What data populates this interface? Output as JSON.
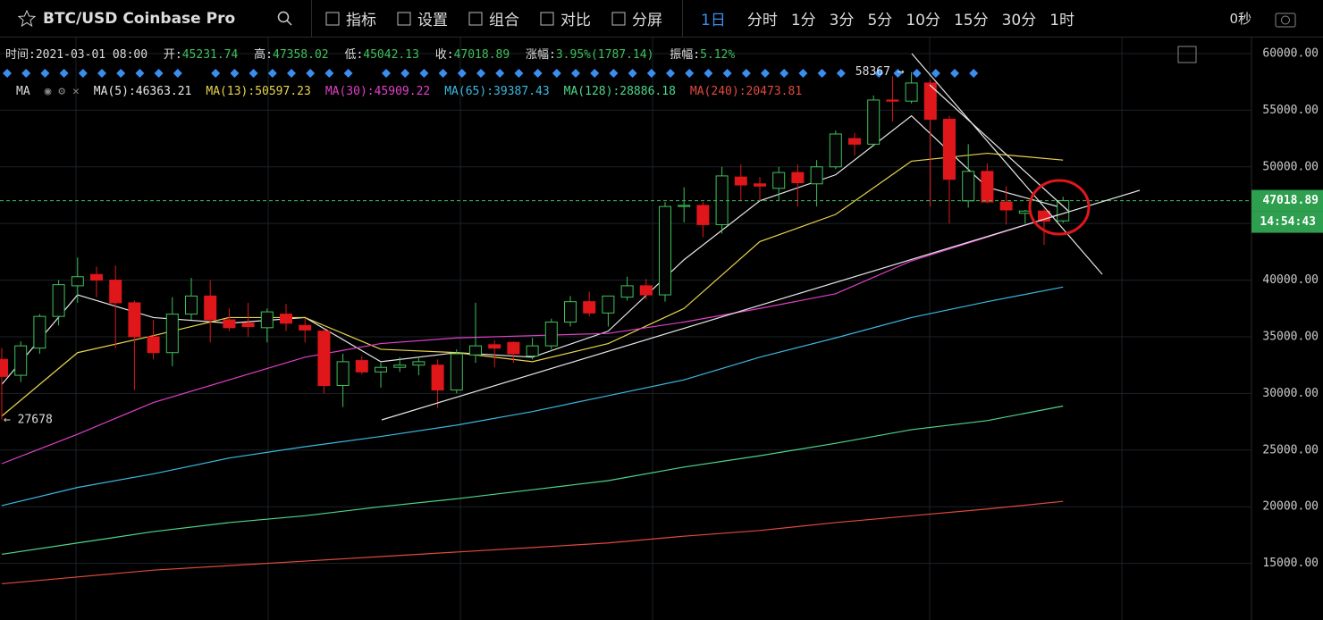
{
  "toolbar": {
    "symbol": "BTC/USD Coinbase Pro",
    "menu": [
      "指标",
      "设置",
      "组合",
      "对比",
      "分屏"
    ],
    "intervals": [
      "1日",
      "分时",
      "1分",
      "3分",
      "5分",
      "10分",
      "15分",
      "30分",
      "1时"
    ],
    "timer": "0秒"
  },
  "info": {
    "time_label": "时间:",
    "time": "2021-03-01 08:00",
    "open_label": "开:",
    "high_label": "高:",
    "low_label": "低:",
    "close_label": "收:",
    "change_label": "涨幅:",
    "change": "3.95%(1787.14)",
    "amplitude_label": "振幅:",
    "amplitude": "5.12%"
  },
  "countdown": "14:54:43",
  "chart_data": {
    "type": "candlestick",
    "indicator": "MA",
    "separator": ":",
    "open": [
      33000,
      31600,
      34000,
      36800,
      39500,
      40500,
      40000,
      38000,
      35000,
      33600,
      37000,
      38600,
      36500,
      36200,
      35800,
      37000,
      36000,
      35500,
      30700,
      32900,
      31900,
      32300,
      32500,
      32500,
      30300,
      33400,
      34300,
      34500,
      33300,
      34200,
      36300,
      38100,
      37100,
      38500,
      39500,
      38700,
      46500,
      46600,
      44900,
      49100,
      48500,
      48100,
      49500,
      48500,
      50000,
      52500,
      52000,
      55900,
      55800,
      57400,
      54200,
      47000,
      49600,
      46900,
      45900,
      46100,
      45231.74
    ],
    "high": [
      34000,
      34600,
      37000,
      40000,
      42000,
      41200,
      41300,
      38200,
      36500,
      38500,
      40200,
      40000,
      37500,
      38000,
      37500,
      37900,
      36600,
      35700,
      33500,
      33300,
      32700,
      33200,
      33100,
      33000,
      33900,
      38000,
      34700,
      34600,
      34900,
      36600,
      38600,
      39000,
      38600,
      40300,
      40100,
      46900,
      48200,
      46900,
      50000,
      50200,
      49100,
      50000,
      50200,
      50600,
      53200,
      53000,
      56300,
      58000,
      58367,
      57700,
      54500,
      52000,
      50300,
      48300,
      46200,
      46300,
      47358.02
    ],
    "low": [
      27678,
      31000,
      33500,
      36000,
      38000,
      38500,
      34000,
      30300,
      33000,
      32400,
      36500,
      34500,
      35500,
      35000,
      34500,
      35500,
      34500,
      30000,
      28800,
      31700,
      30500,
      31900,
      31600,
      28700,
      30000,
      32700,
      32300,
      32700,
      33000,
      33900,
      35900,
      36800,
      35900,
      38200,
      38300,
      38100,
      45100,
      43800,
      44100,
      47000,
      47000,
      47000,
      46500,
      46500,
      49800,
      51000,
      51800,
      54000,
      55600,
      46500,
      45000,
      46400,
      46800,
      44900,
      45000,
      43100,
      45042.13
    ],
    "close": [
      31500,
      34200,
      36800,
      39600,
      40300,
      40000,
      38000,
      35000,
      33600,
      37000,
      38600,
      36500,
      35800,
      35900,
      37200,
      36200,
      35600,
      30700,
      32800,
      31900,
      32300,
      32500,
      32800,
      30300,
      33500,
      34200,
      34000,
      33500,
      34200,
      36300,
      38100,
      37100,
      38600,
      39500,
      38700,
      46500,
      46600,
      44900,
      49200,
      48400,
      48300,
      49500,
      48600,
      50000,
      52900,
      52000,
      55900,
      55800,
      57400,
      54200,
      48900,
      49600,
      46900,
      46200,
      46100,
      45200,
      47018.89
    ],
    "up_color": "#3fc05a",
    "down_color": "#e0171a",
    "series": [
      {
        "name": "MA(5)",
        "color": "#e8e8e8",
        "x": [
          0,
          4,
          8,
          12,
          16,
          20,
          24,
          28,
          32,
          36,
          40,
          44,
          48,
          52,
          56
        ],
        "values": [
          30800,
          38700,
          36700,
          36200,
          36700,
          32800,
          33600,
          33200,
          35500,
          41800,
          47000,
          49300,
          54500,
          48200,
          46363.21
        ]
      },
      {
        "name": "MA(13)",
        "color": "#e8d44d",
        "x": [
          0,
          4,
          8,
          12,
          16,
          20,
          24,
          28,
          32,
          36,
          40,
          44,
          48,
          52,
          56
        ],
        "values": [
          28000,
          33600,
          35100,
          36700,
          36700,
          33900,
          33600,
          32800,
          34400,
          37500,
          43400,
          45800,
          50500,
          51200,
          50597.23
        ]
      },
      {
        "name": "MA(30)",
        "color": "#e040c8",
        "x": [
          0,
          4,
          8,
          12,
          16,
          20,
          24,
          28,
          32,
          36,
          40,
          44,
          48,
          52,
          56
        ],
        "values": [
          23800,
          26400,
          29200,
          31200,
          33200,
          34400,
          34900,
          35100,
          35300,
          36300,
          37500,
          38800,
          41700,
          43800,
          45909.22
        ]
      },
      {
        "name": "MA(65)",
        "color": "#3cb8e0",
        "x": [
          0,
          4,
          8,
          12,
          16,
          20,
          24,
          28,
          32,
          36,
          40,
          44,
          48,
          52,
          56
        ],
        "values": [
          20100,
          21700,
          22900,
          24300,
          25300,
          26200,
          27200,
          28400,
          29800,
          31200,
          33200,
          34900,
          36700,
          38100,
          39387.43
        ]
      },
      {
        "name": "MA(128)",
        "color": "#4fd68a",
        "x": [
          0,
          4,
          8,
          12,
          16,
          20,
          24,
          28,
          32,
          36,
          40,
          44,
          48,
          52,
          56
        ],
        "values": [
          15800,
          16800,
          17800,
          18600,
          19200,
          20000,
          20700,
          21500,
          22300,
          23500,
          24500,
          25600,
          26800,
          27600,
          28886.18
        ]
      },
      {
        "name": "MA(240)",
        "color": "#e04a3c",
        "x": [
          0,
          4,
          8,
          12,
          16,
          20,
          24,
          28,
          32,
          36,
          40,
          44,
          48,
          52,
          56
        ],
        "values": [
          13200,
          13800,
          14400,
          14800,
          15200,
          15600,
          16000,
          16400,
          16800,
          17400,
          17900,
          18600,
          19200,
          19800,
          20473.81
        ]
      }
    ],
    "annotations": [
      {
        "text": "58367 →"
      },
      {
        "text": "← 27678"
      }
    ],
    "ylim": [
      10000,
      61100
    ],
    "yticks": [
      {
        "value": 15000,
        "label": "15000.00"
      },
      {
        "value": 20000,
        "label": "20000.00"
      },
      {
        "value": 25000,
        "label": "25000.00"
      },
      {
        "value": 30000,
        "label": "30000.00"
      },
      {
        "value": 35000,
        "label": "35000.00"
      },
      {
        "value": 40000,
        "label": "40000.00"
      },
      {
        "value": 45000,
        "label": "45000.00"
      },
      {
        "value": 50000,
        "label": "50000.00"
      },
      {
        "value": 55000,
        "label": "55000.00"
      },
      {
        "value": 60000,
        "label": "60000.00"
      }
    ],
    "grid": true
  }
}
